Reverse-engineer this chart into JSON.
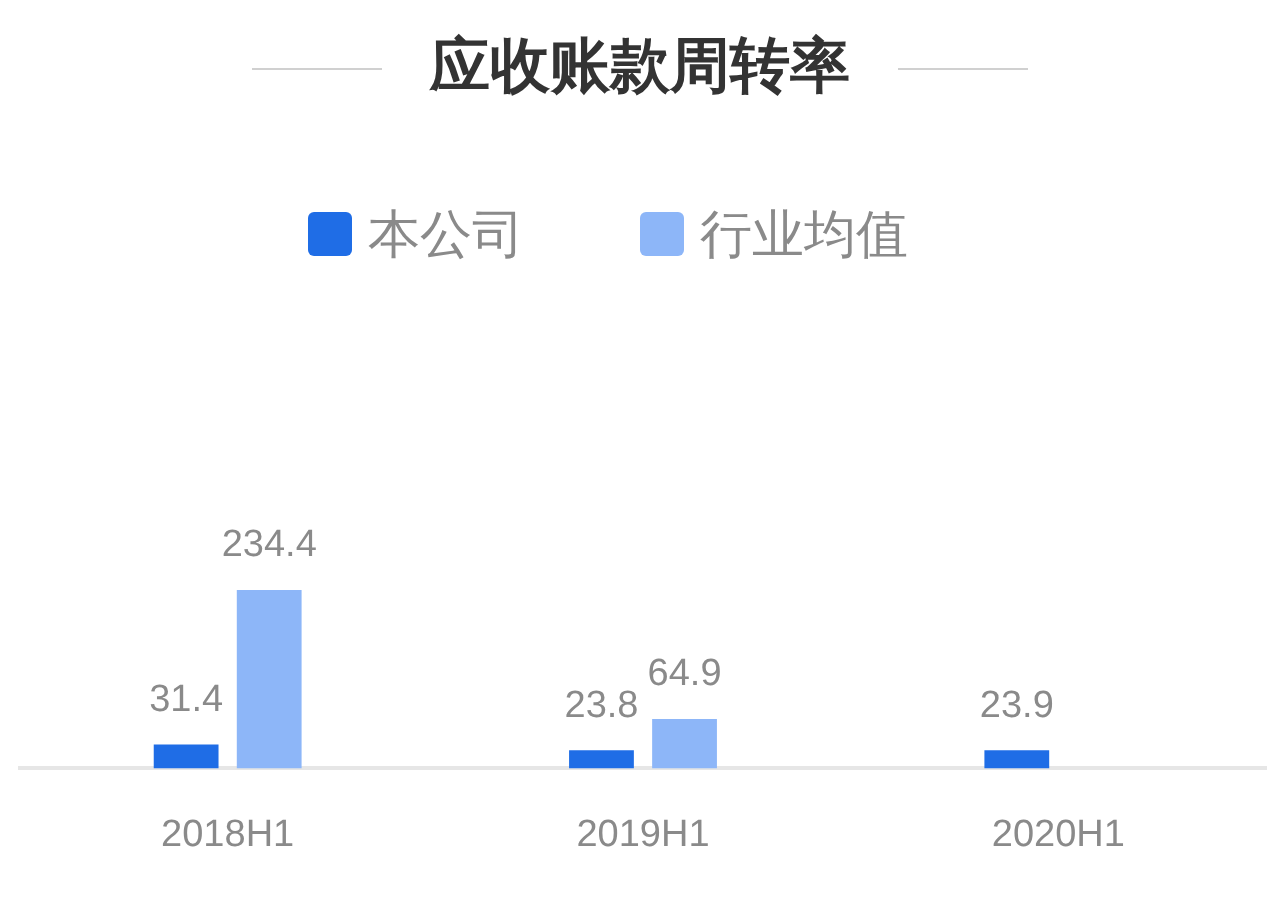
{
  "chart_data": {
    "type": "bar",
    "title": "应收账款周转率",
    "categories": [
      "2018H1",
      "2019H1",
      "2020H1"
    ],
    "series": [
      {
        "name": "本公司",
        "color": "#1f6de6",
        "values": [
          31.4,
          23.8,
          23.9
        ]
      },
      {
        "name": "行业均值",
        "color": "#8db6f8",
        "values": [
          234.4,
          64.9,
          null
        ]
      }
    ],
    "data_labels": true,
    "legend": "top"
  }
}
